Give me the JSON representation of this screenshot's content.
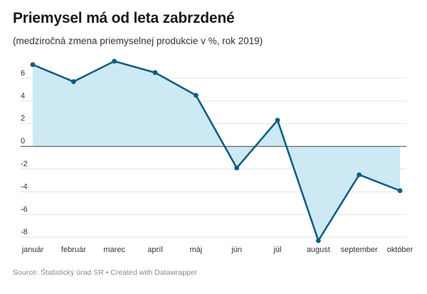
{
  "header": {
    "title": "Priemysel má od leta zabrzdené",
    "subtitle": "(medziročná zmena priemyselnej produkcie v %, rok 2019)"
  },
  "footer": {
    "source": "Source: Štatistický úrad SR • Created with Datawrapper"
  },
  "colors": {
    "line": "#0e5f7f",
    "area": "#cde9f3",
    "grid": "#e3e3e3",
    "zero": "#666666"
  },
  "chart_data": {
    "type": "area",
    "title": "Priemysel má od leta zabrzdené",
    "subtitle": "(medziročná zmena priemyselnej produkcie v %, rok 2019)",
    "categories": [
      "január",
      "február",
      "marec",
      "apríl",
      "máj",
      "jún",
      "júl",
      "august",
      "september",
      "október"
    ],
    "series": [
      {
        "values": [
          7.2,
          5.7,
          7.5,
          6.5,
          4.5,
          -1.9,
          2.3,
          -8.3,
          -2.5,
          -3.9
        ]
      }
    ],
    "yticks": [
      -8,
      -6,
      -4,
      -2,
      0,
      2,
      4,
      6
    ],
    "ylim": [
      -8.3,
      7.5
    ],
    "grid": true,
    "legend": "none"
  }
}
